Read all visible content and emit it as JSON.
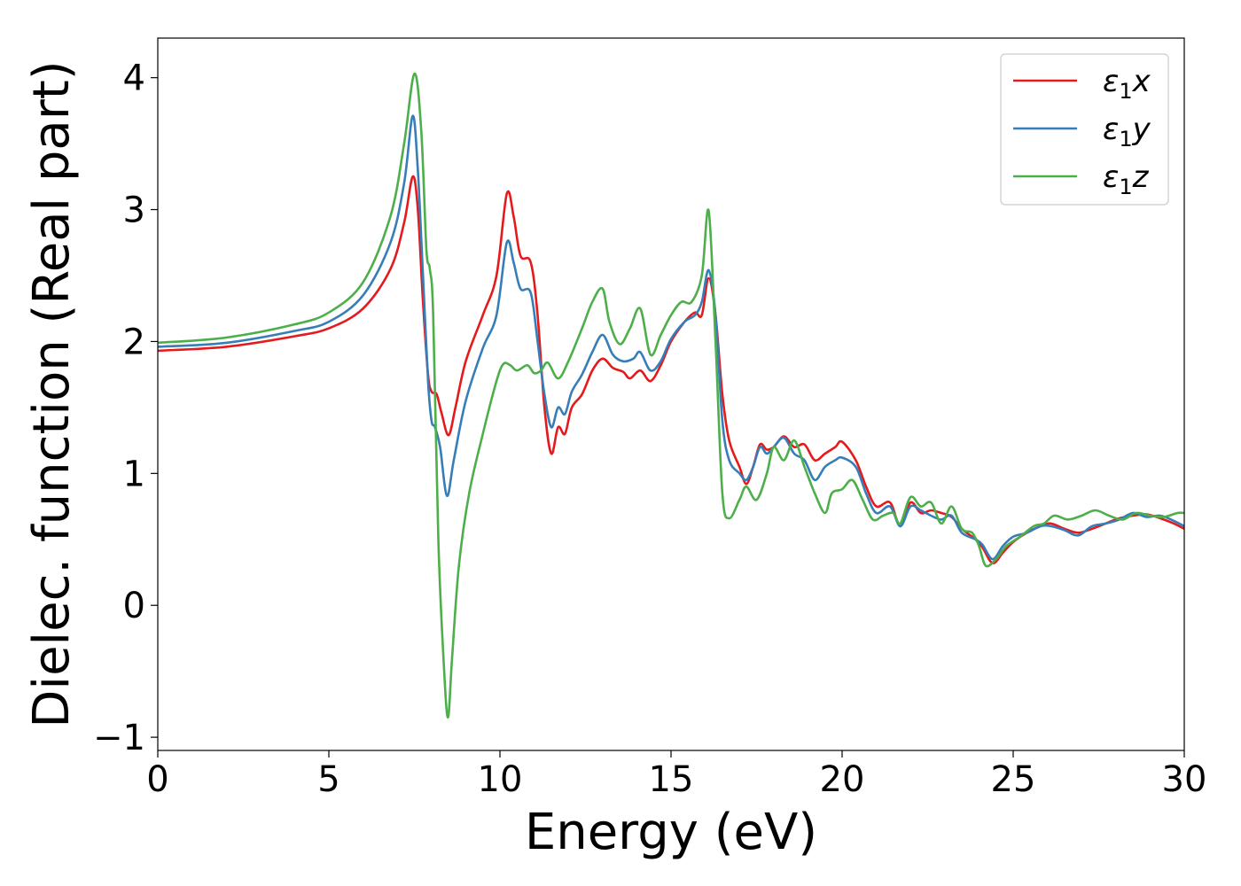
{
  "chart_data": {
    "type": "line",
    "xlabel": "Energy (eV)",
    "ylabel": "Dielec. function (Real part)",
    "xlim": [
      0,
      30
    ],
    "ylim": [
      -1.1,
      4.3
    ],
    "xticks": [
      0,
      5,
      10,
      15,
      20,
      25,
      30
    ],
    "xtick_labels": [
      "0",
      "5",
      "10",
      "15",
      "20",
      "25",
      "30"
    ],
    "yticks": [
      -1,
      0,
      1,
      2,
      3,
      4
    ],
    "ytick_labels": [
      "−1",
      "0",
      "1",
      "2",
      "3",
      "4"
    ],
    "grid": false,
    "legend_position": "top-right",
    "series": [
      {
        "name": "ε1x",
        "legend": {
          "symbol": "ε",
          "sub": "1",
          "suffix": "x"
        },
        "color": "#e41a1c",
        "points": [
          [
            0,
            1.93
          ],
          [
            2,
            1.96
          ],
          [
            4,
            2.04
          ],
          [
            5,
            2.1
          ],
          [
            6,
            2.25
          ],
          [
            6.8,
            2.55
          ],
          [
            7.2,
            2.9
          ],
          [
            7.45,
            3.25
          ],
          [
            7.6,
            3.0
          ],
          [
            7.75,
            2.3
          ],
          [
            7.9,
            1.75
          ],
          [
            8.0,
            1.62
          ],
          [
            8.15,
            1.6
          ],
          [
            8.3,
            1.45
          ],
          [
            8.5,
            1.29
          ],
          [
            8.7,
            1.5
          ],
          [
            9.0,
            1.85
          ],
          [
            9.5,
            2.2
          ],
          [
            9.9,
            2.5
          ],
          [
            10.2,
            3.12
          ],
          [
            10.4,
            2.95
          ],
          [
            10.6,
            2.65
          ],
          [
            10.9,
            2.6
          ],
          [
            11.1,
            2.2
          ],
          [
            11.3,
            1.5
          ],
          [
            11.5,
            1.15
          ],
          [
            11.7,
            1.35
          ],
          [
            11.9,
            1.3
          ],
          [
            12.1,
            1.5
          ],
          [
            12.4,
            1.6
          ],
          [
            12.7,
            1.78
          ],
          [
            13.0,
            1.87
          ],
          [
            13.3,
            1.8
          ],
          [
            13.6,
            1.77
          ],
          [
            13.8,
            1.72
          ],
          [
            14.1,
            1.78
          ],
          [
            14.4,
            1.7
          ],
          [
            14.7,
            1.82
          ],
          [
            15.0,
            2.0
          ],
          [
            15.4,
            2.15
          ],
          [
            15.7,
            2.22
          ],
          [
            15.9,
            2.2
          ],
          [
            16.1,
            2.48
          ],
          [
            16.3,
            2.2
          ],
          [
            16.5,
            1.6
          ],
          [
            16.7,
            1.25
          ],
          [
            17.0,
            1.05
          ],
          [
            17.2,
            0.92
          ],
          [
            17.4,
            1.05
          ],
          [
            17.6,
            1.22
          ],
          [
            17.8,
            1.18
          ],
          [
            18.0,
            1.2
          ],
          [
            18.3,
            1.28
          ],
          [
            18.6,
            1.2
          ],
          [
            18.9,
            1.22
          ],
          [
            19.2,
            1.1
          ],
          [
            19.5,
            1.15
          ],
          [
            19.8,
            1.2
          ],
          [
            20.0,
            1.24
          ],
          [
            20.4,
            1.1
          ],
          [
            20.7,
            0.9
          ],
          [
            21.0,
            0.75
          ],
          [
            21.4,
            0.78
          ],
          [
            21.7,
            0.6
          ],
          [
            22.0,
            0.78
          ],
          [
            22.3,
            0.7
          ],
          [
            22.6,
            0.72
          ],
          [
            22.9,
            0.7
          ],
          [
            23.2,
            0.67
          ],
          [
            23.5,
            0.58
          ],
          [
            23.9,
            0.5
          ],
          [
            24.1,
            0.44
          ],
          [
            24.4,
            0.32
          ],
          [
            24.7,
            0.4
          ],
          [
            25.0,
            0.48
          ],
          [
            25.4,
            0.55
          ],
          [
            25.8,
            0.6
          ],
          [
            26.1,
            0.62
          ],
          [
            26.5,
            0.58
          ],
          [
            26.9,
            0.55
          ],
          [
            27.3,
            0.58
          ],
          [
            27.7,
            0.62
          ],
          [
            28.1,
            0.66
          ],
          [
            28.5,
            0.68
          ],
          [
            28.9,
            0.69
          ],
          [
            29.3,
            0.66
          ],
          [
            29.7,
            0.62
          ],
          [
            30.0,
            0.58
          ]
        ]
      },
      {
        "name": "ε1y",
        "legend": {
          "symbol": "ε",
          "sub": "1",
          "suffix": "y"
        },
        "color": "#377eb8",
        "points": [
          [
            0,
            1.96
          ],
          [
            2,
            1.99
          ],
          [
            4,
            2.08
          ],
          [
            5,
            2.15
          ],
          [
            6,
            2.35
          ],
          [
            6.8,
            2.75
          ],
          [
            7.2,
            3.2
          ],
          [
            7.45,
            3.71
          ],
          [
            7.6,
            3.3
          ],
          [
            7.75,
            2.5
          ],
          [
            7.9,
            1.7
          ],
          [
            8.0,
            1.4
          ],
          [
            8.1,
            1.35
          ],
          [
            8.25,
            1.2
          ],
          [
            8.45,
            0.83
          ],
          [
            8.65,
            1.1
          ],
          [
            9.0,
            1.55
          ],
          [
            9.5,
            1.95
          ],
          [
            9.9,
            2.2
          ],
          [
            10.2,
            2.75
          ],
          [
            10.4,
            2.6
          ],
          [
            10.6,
            2.4
          ],
          [
            10.9,
            2.37
          ],
          [
            11.1,
            2.0
          ],
          [
            11.3,
            1.6
          ],
          [
            11.5,
            1.35
          ],
          [
            11.7,
            1.5
          ],
          [
            11.9,
            1.45
          ],
          [
            12.1,
            1.62
          ],
          [
            12.4,
            1.75
          ],
          [
            12.7,
            1.92
          ],
          [
            13.0,
            2.05
          ],
          [
            13.3,
            1.9
          ],
          [
            13.6,
            1.85
          ],
          [
            13.9,
            1.87
          ],
          [
            14.1,
            1.92
          ],
          [
            14.4,
            1.78
          ],
          [
            14.7,
            1.85
          ],
          [
            15.0,
            2.02
          ],
          [
            15.4,
            2.15
          ],
          [
            15.7,
            2.2
          ],
          [
            15.9,
            2.3
          ],
          [
            16.1,
            2.54
          ],
          [
            16.3,
            2.2
          ],
          [
            16.5,
            1.4
          ],
          [
            16.7,
            1.1
          ],
          [
            17.0,
            1.0
          ],
          [
            17.2,
            0.95
          ],
          [
            17.4,
            1.05
          ],
          [
            17.6,
            1.2
          ],
          [
            17.8,
            1.15
          ],
          [
            18.0,
            1.2
          ],
          [
            18.3,
            1.27
          ],
          [
            18.6,
            1.15
          ],
          [
            18.9,
            1.1
          ],
          [
            19.2,
            0.95
          ],
          [
            19.5,
            1.05
          ],
          [
            19.8,
            1.1
          ],
          [
            20.0,
            1.12
          ],
          [
            20.4,
            1.05
          ],
          [
            20.7,
            0.85
          ],
          [
            21.0,
            0.7
          ],
          [
            21.4,
            0.75
          ],
          [
            21.7,
            0.6
          ],
          [
            22.0,
            0.75
          ],
          [
            22.3,
            0.72
          ],
          [
            22.6,
            0.68
          ],
          [
            22.9,
            0.65
          ],
          [
            23.2,
            0.68
          ],
          [
            23.5,
            0.55
          ],
          [
            23.9,
            0.5
          ],
          [
            24.1,
            0.46
          ],
          [
            24.4,
            0.35
          ],
          [
            24.7,
            0.45
          ],
          [
            25.0,
            0.52
          ],
          [
            25.4,
            0.55
          ],
          [
            25.8,
            0.6
          ],
          [
            26.1,
            0.6
          ],
          [
            26.5,
            0.57
          ],
          [
            26.9,
            0.53
          ],
          [
            27.3,
            0.6
          ],
          [
            27.7,
            0.62
          ],
          [
            28.1,
            0.65
          ],
          [
            28.5,
            0.7
          ],
          [
            28.9,
            0.67
          ],
          [
            29.3,
            0.68
          ],
          [
            29.7,
            0.64
          ],
          [
            30.0,
            0.6
          ]
        ]
      },
      {
        "name": "ε1z",
        "legend": {
          "symbol": "ε",
          "sub": "1",
          "suffix": "z"
        },
        "color": "#4daf4a",
        "points": [
          [
            0,
            1.99
          ],
          [
            2,
            2.03
          ],
          [
            4,
            2.13
          ],
          [
            5,
            2.22
          ],
          [
            6,
            2.45
          ],
          [
            6.8,
            2.95
          ],
          [
            7.2,
            3.5
          ],
          [
            7.5,
            4.03
          ],
          [
            7.7,
            3.6
          ],
          [
            7.85,
            2.7
          ],
          [
            7.95,
            2.55
          ],
          [
            8.05,
            2.2
          ],
          [
            8.2,
            0.5
          ],
          [
            8.35,
            -0.4
          ],
          [
            8.48,
            -0.85
          ],
          [
            8.6,
            -0.4
          ],
          [
            8.8,
            0.3
          ],
          [
            9.1,
            0.85
          ],
          [
            9.5,
            1.3
          ],
          [
            9.9,
            1.7
          ],
          [
            10.1,
            1.83
          ],
          [
            10.3,
            1.82
          ],
          [
            10.5,
            1.78
          ],
          [
            10.8,
            1.82
          ],
          [
            11.0,
            1.76
          ],
          [
            11.2,
            1.78
          ],
          [
            11.4,
            1.84
          ],
          [
            11.7,
            1.72
          ],
          [
            12.0,
            1.85
          ],
          [
            12.4,
            2.1
          ],
          [
            12.7,
            2.3
          ],
          [
            13.0,
            2.4
          ],
          [
            13.2,
            2.15
          ],
          [
            13.5,
            1.98
          ],
          [
            13.8,
            2.1
          ],
          [
            14.1,
            2.25
          ],
          [
            14.4,
            1.9
          ],
          [
            14.7,
            2.05
          ],
          [
            15.0,
            2.2
          ],
          [
            15.3,
            2.3
          ],
          [
            15.6,
            2.3
          ],
          [
            15.9,
            2.5
          ],
          [
            16.1,
            2.99
          ],
          [
            16.3,
            2.0
          ],
          [
            16.5,
            0.85
          ],
          [
            16.7,
            0.66
          ],
          [
            17.0,
            0.8
          ],
          [
            17.2,
            0.9
          ],
          [
            17.5,
            0.8
          ],
          [
            17.8,
            1.0
          ],
          [
            18.0,
            1.2
          ],
          [
            18.3,
            1.1
          ],
          [
            18.6,
            1.25
          ],
          [
            18.9,
            1.05
          ],
          [
            19.2,
            0.85
          ],
          [
            19.5,
            0.7
          ],
          [
            19.7,
            0.85
          ],
          [
            20.0,
            0.88
          ],
          [
            20.3,
            0.95
          ],
          [
            20.6,
            0.8
          ],
          [
            20.9,
            0.65
          ],
          [
            21.2,
            0.68
          ],
          [
            21.5,
            0.7
          ],
          [
            21.7,
            0.62
          ],
          [
            22.0,
            0.82
          ],
          [
            22.3,
            0.75
          ],
          [
            22.6,
            0.78
          ],
          [
            22.9,
            0.62
          ],
          [
            23.2,
            0.75
          ],
          [
            23.5,
            0.58
          ],
          [
            23.8,
            0.55
          ],
          [
            24.0,
            0.45
          ],
          [
            24.2,
            0.3
          ],
          [
            24.5,
            0.35
          ],
          [
            24.8,
            0.45
          ],
          [
            25.2,
            0.52
          ],
          [
            25.6,
            0.6
          ],
          [
            25.9,
            0.62
          ],
          [
            26.2,
            0.68
          ],
          [
            26.6,
            0.65
          ],
          [
            27.0,
            0.68
          ],
          [
            27.4,
            0.72
          ],
          [
            27.8,
            0.68
          ],
          [
            28.2,
            0.65
          ],
          [
            28.6,
            0.7
          ],
          [
            29.0,
            0.68
          ],
          [
            29.4,
            0.67
          ],
          [
            29.8,
            0.7
          ],
          [
            30.0,
            0.7
          ]
        ]
      }
    ]
  }
}
